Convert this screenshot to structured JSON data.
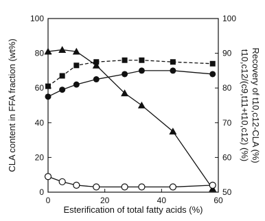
{
  "chart_data": {
    "type": "line",
    "xlabel": "Esterification of total fatty acids (%)",
    "ylabel_left": "CLA content in FFA fraction (wt%)",
    "ylabel_right_line1": "t10,c12/(c9,t11+t10,c12) (%)",
    "ylabel_right_line2": "Recovery of t10,c12-CLA (%)",
    "xlim": [
      0,
      60
    ],
    "ylim_left": [
      0,
      100
    ],
    "ylim_right": [
      50,
      100
    ],
    "x_ticks": [
      0,
      20,
      40,
      60
    ],
    "y_left_ticks": [
      0,
      20,
      40,
      60,
      80,
      100
    ],
    "y_right_ticks": [
      50,
      60,
      70,
      80,
      90,
      100
    ],
    "series": [
      {
        "marker": "triangle",
        "axis": "left",
        "line": "solid",
        "x": [
          0,
          5,
          10,
          17,
          27,
          33,
          44,
          58
        ],
        "y": [
          81,
          82,
          81,
          73,
          57,
          50,
          35,
          2
        ]
      },
      {
        "marker": "square",
        "axis": "left",
        "line": "dashed",
        "x": [
          0,
          5,
          10,
          17,
          27,
          33,
          44,
          58
        ],
        "y": [
          61,
          67,
          73,
          75,
          76,
          76,
          75,
          74
        ]
      },
      {
        "marker": "filled-circle",
        "axis": "left",
        "line": "solid",
        "x": [
          0,
          5,
          10,
          17,
          27,
          33,
          44,
          58
        ],
        "y": [
          55,
          59,
          62,
          65,
          68,
          70,
          70,
          68
        ]
      },
      {
        "marker": "open-circle",
        "axis": "left",
        "line": "solid",
        "x": [
          0,
          5,
          10,
          17,
          27,
          33,
          44,
          58
        ],
        "y": [
          9,
          6,
          4,
          3,
          3,
          3,
          3,
          4
        ]
      }
    ]
  }
}
